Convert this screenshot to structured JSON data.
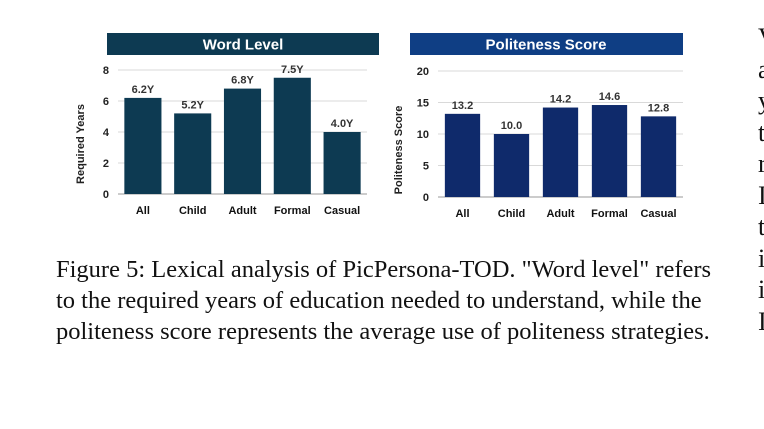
{
  "chart_data": [
    {
      "type": "bar",
      "title": "Word Level",
      "ylabel": "Required Years",
      "categories": [
        "All",
        "Child",
        "Adult",
        "Formal",
        "Casual"
      ],
      "values": [
        6.2,
        5.2,
        6.8,
        7.5,
        4.0
      ],
      "data_labels": [
        "6.2Y",
        "5.2Y",
        "6.8Y",
        "7.5Y",
        "4.0Y"
      ],
      "ylim": [
        0,
        8
      ],
      "yticks": [
        "0",
        "2",
        "4",
        "6",
        "8"
      ],
      "grid": true,
      "bar_color": "#0d3a52",
      "title_bg": "#0d3a52"
    },
    {
      "type": "bar",
      "title": "Politeness Score",
      "ylabel": "Politeness Score",
      "categories": [
        "All",
        "Child",
        "Adult",
        "Formal",
        "Casual"
      ],
      "values": [
        13.2,
        10.0,
        14.2,
        14.6,
        12.8
      ],
      "data_labels": [
        "13.2",
        "10.0",
        "14.2",
        "14.6",
        "12.8"
      ],
      "ylim": [
        0,
        20
      ],
      "yticks": [
        "0",
        "5",
        "10",
        "15",
        "20"
      ],
      "grid": true,
      "bar_color": "#0f2a6b",
      "title_bg": "#0f3e84"
    }
  ],
  "caption": {
    "text": "Figure 5: Lexical analysis of PicPersona-TOD. \"Word level\" refers to the required years of education needed to understand, while the politeness score represents the average use of politeness strategies."
  },
  "side_column": {
    "letters": [
      "V",
      "a",
      "y",
      "t",
      "r",
      "I",
      "t",
      "i",
      "i",
      "I"
    ]
  }
}
